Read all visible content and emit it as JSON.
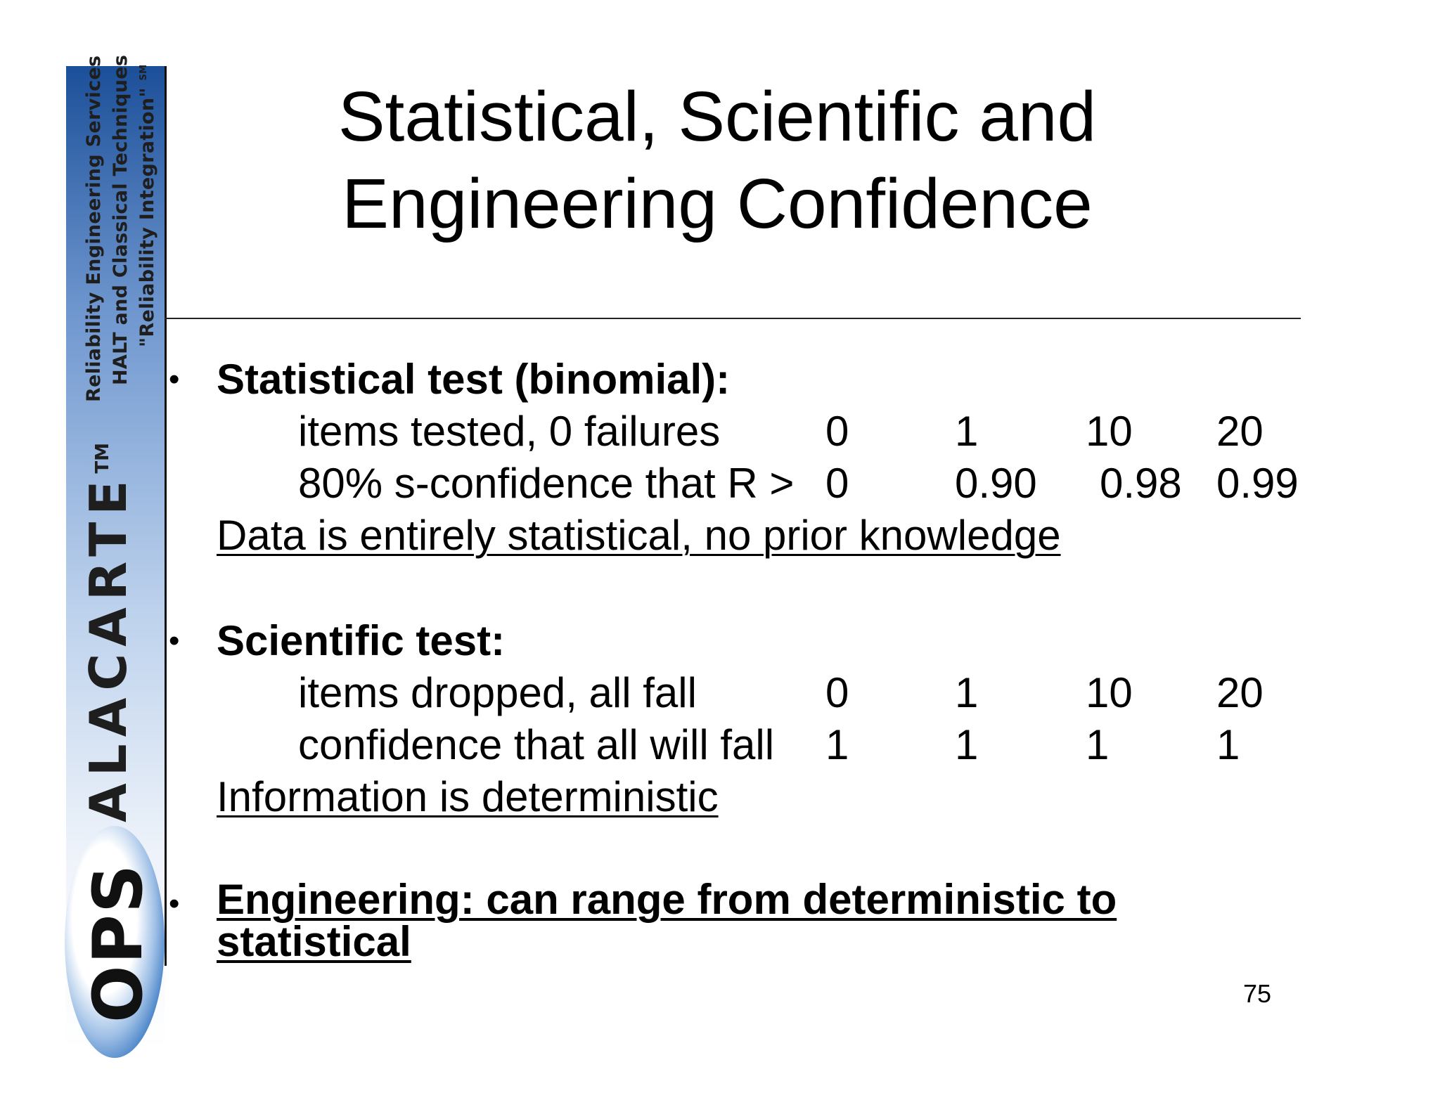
{
  "sidebar": {
    "tagline_1": "Reliability Engineering Services",
    "tagline_2": "HALT and Classical Techniques",
    "tagline_3": "\"Reliability Integration\"",
    "tagline_3_mark": "SM",
    "brand": "ALACARTE",
    "brand_mark": "TM",
    "logo": "OPS"
  },
  "title": {
    "line1": "Statistical, Scientific and",
    "line2": "Engineering Confidence"
  },
  "sections": {
    "statistical": {
      "bullet": "•",
      "heading": "Statistical test (binomial):",
      "row1_label": "items tested, 0 failures",
      "row1_values": [
        "0",
        "1",
        "10",
        "20"
      ],
      "row2_label": "80% s-confidence that R >",
      "row2_values": [
        "0",
        "0.90",
        "0.98",
        "0.99"
      ],
      "note": "Data is entirely statistical, no prior knowledge"
    },
    "scientific": {
      "bullet": "•",
      "heading": "Scientific test:",
      "row1_label": "items dropped, all fall",
      "row1_values": [
        "0",
        "1",
        "10",
        "20"
      ],
      "row2_label": "confidence that all will fall",
      "row2_values": [
        "1",
        "1",
        "1",
        "1"
      ],
      "note": "Information is deterministic"
    },
    "engineering": {
      "bullet": "•",
      "line1": "Engineering: can range from deterministic to",
      "line2": "statistical"
    }
  },
  "page_number": "75"
}
